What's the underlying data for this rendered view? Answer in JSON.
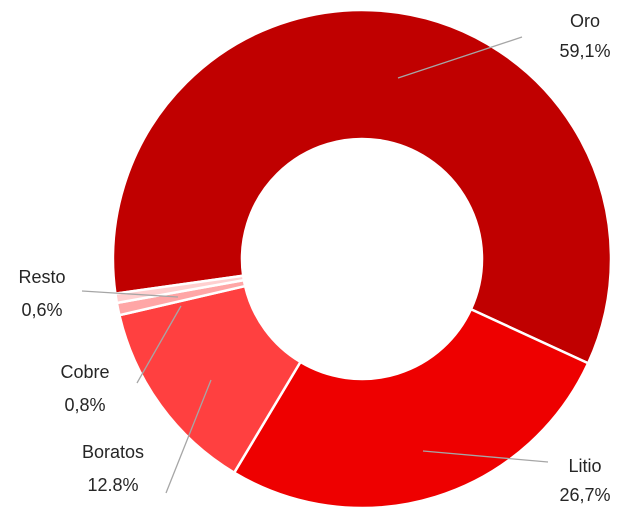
{
  "chart_data": {
    "type": "donut",
    "categories": [
      "Oro",
      "Litio",
      "Boratos",
      "Cobre",
      "Resto"
    ],
    "values": [
      59.1,
      26.7,
      12.8,
      0.8,
      0.6
    ],
    "value_labels": [
      "59,1%",
      "26,7%",
      "12.8%",
      "0,8%",
      "0,6%"
    ],
    "colors": [
      "#c00000",
      "#ee0000",
      "#ff4040",
      "#ffa6a6",
      "#ffd0d0"
    ]
  }
}
